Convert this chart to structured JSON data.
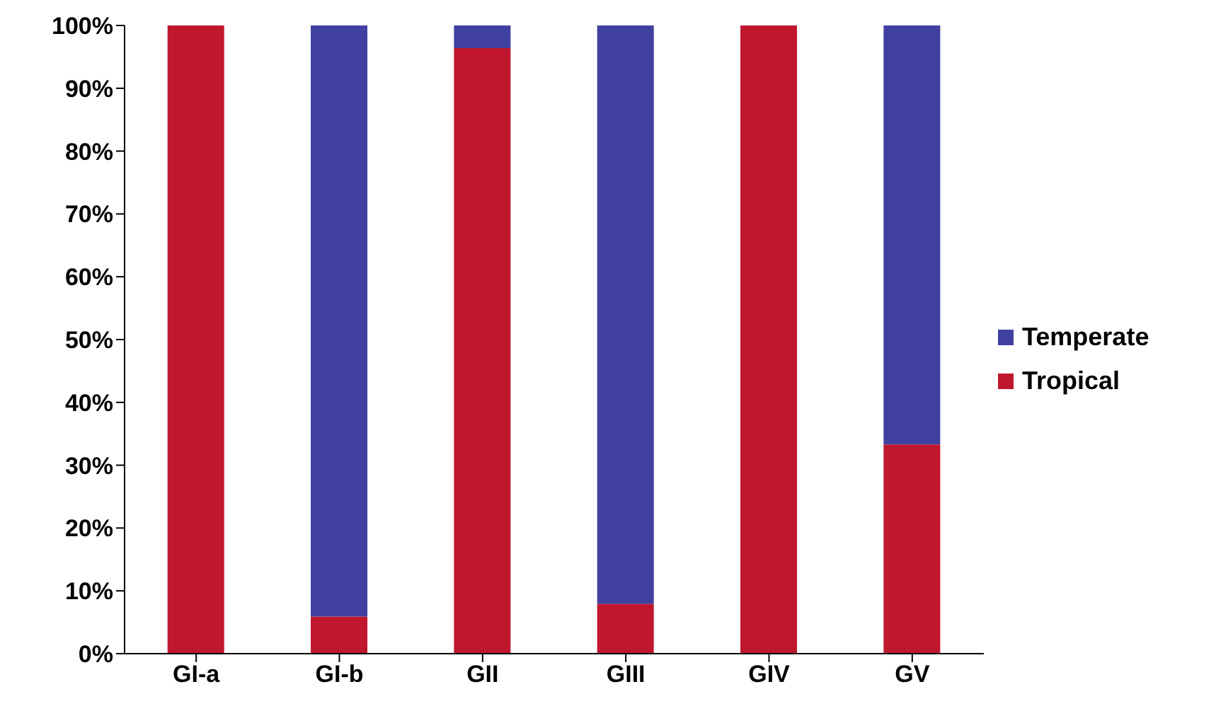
{
  "chart_data": {
    "type": "bar",
    "stacked": true,
    "categories": [
      "GI-a",
      "GI-b",
      "GII",
      "GIII",
      "GIV",
      "GV"
    ],
    "series": [
      {
        "name": "Tropical",
        "color": "#c0172f",
        "values": [
          100,
          5.9,
          96.4,
          7.9,
          100,
          33.3
        ]
      },
      {
        "name": "Temperate",
        "color": "#4040a0",
        "values": [
          0,
          94.1,
          3.6,
          92.1,
          0,
          66.7
        ]
      }
    ],
    "ylim": [
      0,
      100
    ],
    "yticks": [
      {
        "value": 0,
        "label": "0%"
      },
      {
        "value": 10,
        "label": "10%"
      },
      {
        "value": 20,
        "label": "20%"
      },
      {
        "value": 30,
        "label": "30%"
      },
      {
        "value": 40,
        "label": "40%"
      },
      {
        "value": 50,
        "label": "50%"
      },
      {
        "value": 60,
        "label": "60%"
      },
      {
        "value": 70,
        "label": "70%"
      },
      {
        "value": 80,
        "label": "80%"
      },
      {
        "value": 90,
        "label": "90%"
      },
      {
        "value": 100,
        "label": "100%"
      }
    ],
    "grid": false,
    "legend": "right"
  }
}
